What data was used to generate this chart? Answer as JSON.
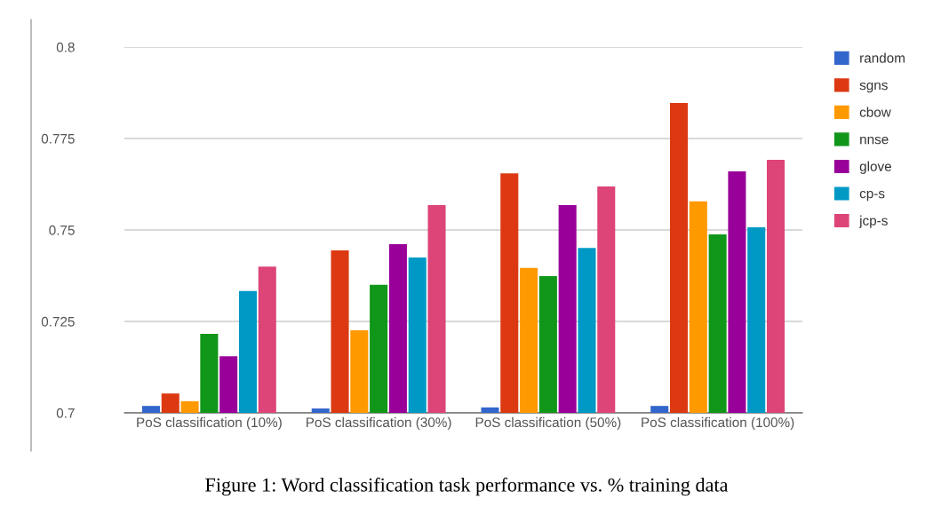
{
  "chart_data": {
    "type": "bar",
    "categories": [
      "PoS classification (10%)",
      "PoS classification (30%)",
      "PoS classification (50%)",
      "PoS classification (100%)"
    ],
    "series": [
      {
        "name": "random",
        "color": "#3366cc",
        "values": [
          0.7019,
          0.7012,
          0.7015,
          0.7019
        ]
      },
      {
        "name": "sgns",
        "color": "#dc3912",
        "values": [
          0.7053,
          0.7444,
          0.7655,
          0.7847
        ]
      },
      {
        "name": "cbow",
        "color": "#ff9900",
        "values": [
          0.7032,
          0.7226,
          0.7396,
          0.7578
        ]
      },
      {
        "name": "nnse",
        "color": "#109618",
        "values": [
          0.7216,
          0.735,
          0.7374,
          0.7488
        ]
      },
      {
        "name": "glove",
        "color": "#990099",
        "values": [
          0.7155,
          0.7461,
          0.7568,
          0.766
        ]
      },
      {
        "name": "cp-s",
        "color": "#0099c6",
        "values": [
          0.7333,
          0.7425,
          0.7451,
          0.7507
        ]
      },
      {
        "name": "jcp-s",
        "color": "#dd4477",
        "values": [
          0.74,
          0.7568,
          0.7619,
          0.7692
        ]
      }
    ],
    "ylim": [
      0.7,
      0.8
    ],
    "yticks": [
      0.7,
      0.725,
      0.75,
      0.775,
      0.8
    ],
    "grid": "y",
    "legend": "top right",
    "annotations": [
      "Figure 1: Word classification task performance vs. % training data"
    ]
  }
}
